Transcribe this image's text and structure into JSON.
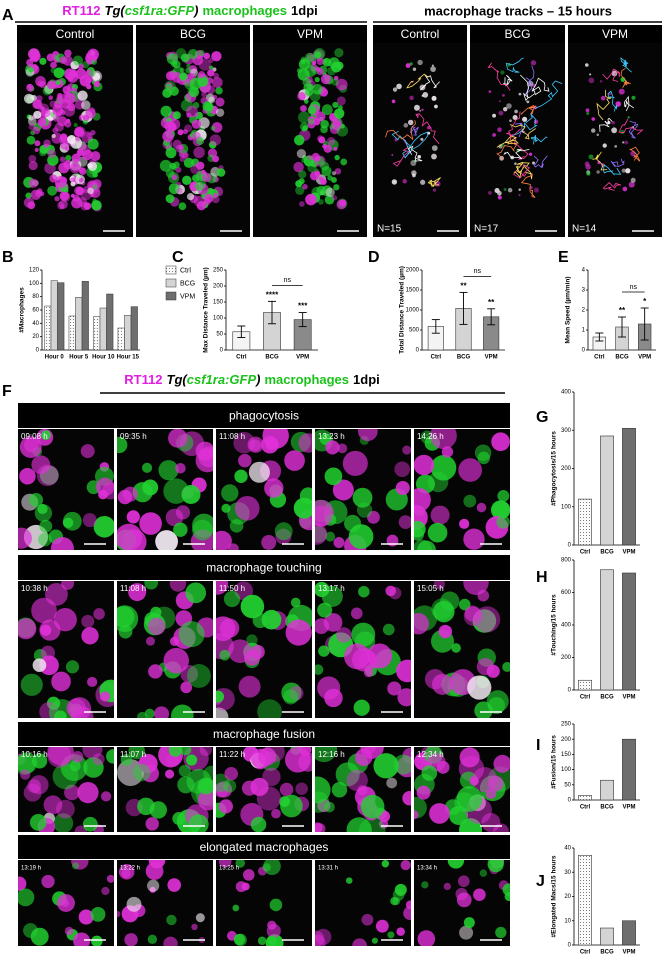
{
  "panel_labels": [
    "A",
    "B",
    "C",
    "D",
    "E",
    "F",
    "G",
    "H",
    "I",
    "J"
  ],
  "panel_a": {
    "title_parts": [
      {
        "text": "RT112",
        "color": "#e21ee0",
        "italic": false
      },
      {
        "text": "Tg(",
        "color": "#000000",
        "italic": true
      },
      {
        "text": "csf1ra:GFP",
        "color": "#1cc21c",
        "italic": true
      },
      {
        "text": ")",
        "color": "#000000",
        "italic": true
      },
      {
        "text": "macrophages",
        "color": "#1cc21c",
        "italic": false
      },
      {
        "text": "1dpi",
        "color": "#000000",
        "italic": false
      }
    ],
    "conditions": [
      "Control",
      "BCG",
      "VPM"
    ],
    "tracks_title": "macrophage tracks – 15 hours",
    "track_conditions": [
      "Control",
      "BCG",
      "VPM"
    ],
    "track_counts": [
      "N=15",
      "N=17",
      "N=14"
    ]
  },
  "panel_f": {
    "title_parts": [
      {
        "text": "RT112",
        "color": "#e21ee0",
        "italic": false
      },
      {
        "text": "Tg(",
        "color": "#000000",
        "italic": true
      },
      {
        "text": "csf1ra:GFP",
        "color": "#1cc21c",
        "italic": true
      },
      {
        "text": ")",
        "color": "#000000",
        "italic": true
      },
      {
        "text": "macrophages",
        "color": "#1cc21c",
        "italic": false
      },
      {
        "text": "1dpi",
        "color": "#000000",
        "italic": false
      }
    ],
    "rows": [
      {
        "title": "phagocytosis",
        "times": [
          "09:08 h",
          "09:35 h",
          "11:08 h",
          "13:23 h",
          "14:26 h"
        ]
      },
      {
        "title": "macrophage touching",
        "times": [
          "10:38 h",
          "11:08 h",
          "11:50 h",
          "13:17 h",
          "15:05 h"
        ]
      },
      {
        "title": "macrophage fusion",
        "times": [
          "10:16 h",
          "11:07 h",
          "11:22 h",
          "12:16 h",
          "12:34 h"
        ]
      },
      {
        "title": "elongated macrophages",
        "times": [
          "13:19 h",
          "13:22 h",
          "13:25 h",
          "13:31 h",
          "13:34 h"
        ]
      }
    ]
  },
  "chart_data": [
    {
      "type": "bar",
      "ylabel": "#Macrophages",
      "categories": [
        "Hour 0",
        "Hour 5",
        "Hour 10",
        "Hour 15"
      ],
      "series": [
        {
          "name": "Ctrl",
          "color": "#f4f4f4",
          "pattern": "dots",
          "values": [
            66,
            51,
            50,
            33
          ]
        },
        {
          "name": "BCG",
          "color": "#d4d4d4",
          "pattern": "solid",
          "values": [
            104,
            79,
            63,
            52
          ]
        },
        {
          "name": "VPM",
          "color": "#6e6e6e",
          "pattern": "solid",
          "values": [
            101,
            103,
            84,
            65
          ]
        }
      ],
      "ylim": [
        0,
        120
      ],
      "yticks": [
        0,
        20,
        40,
        60,
        80,
        100,
        120
      ],
      "legend": "right"
    },
    {
      "type": "errbar",
      "ylabel": "Max Distance Traveled (µm)",
      "categories": [
        "Ctrl",
        "BCG",
        "VPM"
      ],
      "values": [
        57,
        117,
        95
      ],
      "errors": [
        18,
        35,
        22
      ],
      "colors": [
        "#f4f4f4",
        "#d4d4d4",
        "#8a8a8a"
      ],
      "significance": [
        {
          "index": 1,
          "label": "****"
        },
        {
          "index": 2,
          "label": "***"
        }
      ],
      "comparison": {
        "from": 1,
        "to": 2,
        "label": "ns"
      },
      "ylim": [
        0,
        250
      ],
      "yticks": [
        0,
        50,
        100,
        150,
        200,
        250
      ]
    },
    {
      "type": "errbar",
      "ylabel": "Total Distance Traveled (µm)",
      "categories": [
        "Ctrl",
        "BCG",
        "VPM"
      ],
      "values": [
        590,
        1040,
        830
      ],
      "errors": [
        170,
        400,
        200
      ],
      "colors": [
        "#f4f4f4",
        "#d4d4d4",
        "#8a8a8a"
      ],
      "significance": [
        {
          "index": 1,
          "label": "**"
        },
        {
          "index": 2,
          "label": "**"
        }
      ],
      "comparison": {
        "from": 1,
        "to": 2,
        "label": "ns"
      },
      "ylim": [
        0,
        2000
      ],
      "yticks": [
        0,
        500,
        1000,
        1500,
        2000
      ]
    },
    {
      "type": "errbar",
      "ylabel": "Mean Speed (µm/min)",
      "categories": [
        "Ctrl",
        "BCG",
        "VPM"
      ],
      "values": [
        0.65,
        1.15,
        1.3
      ],
      "errors": [
        0.2,
        0.5,
        0.8
      ],
      "colors": [
        "#f4f4f4",
        "#d4d4d4",
        "#8a8a8a"
      ],
      "significance": [
        {
          "index": 1,
          "label": "**"
        },
        {
          "index": 2,
          "label": "*"
        }
      ],
      "comparison": {
        "from": 1,
        "to": 2,
        "label": "ns"
      },
      "ylim": [
        0,
        4
      ],
      "yticks": [
        0,
        1,
        2,
        3,
        4
      ]
    },
    {
      "type": "bar",
      "ylabel": "#Phagocytosis/15 hours",
      "categories": [
        "Ctrl",
        "BCG",
        "VPM"
      ],
      "values": [
        120,
        285,
        305
      ],
      "colors": [
        "#f4f4f4",
        "#d4d4d4",
        "#6e6e6e"
      ],
      "patterns": [
        "dots",
        "solid",
        "solid"
      ],
      "ylim": [
        0,
        400
      ],
      "yticks": [
        0,
        100,
        200,
        300,
        400
      ]
    },
    {
      "type": "bar",
      "ylabel": "#Touching/15 hours",
      "categories": [
        "Ctrl",
        "BCG",
        "VPM"
      ],
      "values": [
        60,
        740,
        720
      ],
      "colors": [
        "#f4f4f4",
        "#d4d4d4",
        "#6e6e6e"
      ],
      "patterns": [
        "dots",
        "solid",
        "solid"
      ],
      "ylim": [
        0,
        800
      ],
      "yticks": [
        0,
        200,
        400,
        600,
        800
      ]
    },
    {
      "type": "bar",
      "ylabel": "#Fusion/15 hours",
      "categories": [
        "Ctrl",
        "BCG",
        "VPM"
      ],
      "values": [
        15,
        65,
        200
      ],
      "colors": [
        "#f4f4f4",
        "#d4d4d4",
        "#6e6e6e"
      ],
      "patterns": [
        "dots",
        "solid",
        "solid"
      ],
      "ylim": [
        0,
        250
      ],
      "yticks": [
        0,
        50,
        100,
        150,
        200,
        250
      ]
    },
    {
      "type": "bar",
      "ylabel": "#Elongated Macs/15 hours",
      "categories": [
        "Ctrl",
        "BCG",
        "VPM"
      ],
      "values": [
        37,
        7,
        10
      ],
      "colors": [
        "#f4f4f4",
        "#d4d4d4",
        "#6e6e6e"
      ],
      "patterns": [
        "dots",
        "solid",
        "solid"
      ],
      "ylim": [
        0,
        40
      ],
      "yticks": [
        0,
        10,
        20,
        30,
        40
      ]
    }
  ]
}
